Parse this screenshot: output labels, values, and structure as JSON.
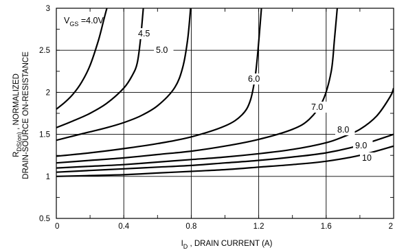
{
  "chart_data": {
    "type": "line",
    "xlabel": {
      "main": "I",
      "sub": "D",
      "rest": " , DRAIN CURRENT (A)"
    },
    "ylabel": {
      "line1_main": "R",
      "line1_sub": "DS(on)",
      "line1_rest": " , NORMALIZED",
      "line2": "DRAIN-SOURCE ON-RESISTANCE"
    },
    "xlim": [
      0,
      2
    ],
    "ylim": [
      0.5,
      3
    ],
    "x_ticks": [
      "0",
      "0.4",
      "0.8",
      "1.2",
      "1.6",
      "2"
    ],
    "x_tick_values": [
      0,
      0.4,
      0.8,
      1.2,
      1.6,
      2
    ],
    "y_ticks": [
      "0.5",
      "1",
      "1.5",
      "2",
      "2.5",
      "3"
    ],
    "y_tick_values": [
      0.5,
      1,
      1.5,
      2,
      2.5,
      3
    ],
    "grid": true,
    "legend_prefix": {
      "main": "V",
      "sub": "GS",
      "rest": " ="
    },
    "series": [
      {
        "name": "4.0V",
        "x": [
          0,
          0.05,
          0.1,
          0.15,
          0.2,
          0.25,
          0.28,
          0.3,
          0.32
        ],
        "y": [
          1.8,
          1.88,
          1.98,
          2.12,
          2.32,
          2.62,
          2.85,
          3.0,
          3.1
        ]
      },
      {
        "name": "4.5",
        "x": [
          0,
          0.1,
          0.2,
          0.3,
          0.4,
          0.45,
          0.48,
          0.5,
          0.52
        ],
        "y": [
          1.58,
          1.66,
          1.75,
          1.87,
          2.05,
          2.2,
          2.35,
          2.65,
          3.1
        ]
      },
      {
        "name": "5.0",
        "x": [
          0,
          0.1,
          0.2,
          0.3,
          0.4,
          0.5,
          0.6,
          0.7,
          0.75,
          0.78,
          0.8
        ],
        "y": [
          1.43,
          1.48,
          1.53,
          1.58,
          1.64,
          1.72,
          1.84,
          2.05,
          2.3,
          2.65,
          3.1
        ]
      },
      {
        "name": "6.0",
        "x": [
          0,
          0.2,
          0.4,
          0.6,
          0.8,
          1.0,
          1.1,
          1.15,
          1.18,
          1.2,
          1.22
        ],
        "y": [
          1.24,
          1.28,
          1.33,
          1.39,
          1.47,
          1.6,
          1.73,
          1.9,
          2.2,
          2.6,
          3.1
        ]
      },
      {
        "name": "7.0",
        "x": [
          0,
          0.2,
          0.4,
          0.6,
          0.8,
          1.0,
          1.2,
          1.4,
          1.5,
          1.58,
          1.63,
          1.65,
          1.67
        ],
        "y": [
          1.16,
          1.19,
          1.22,
          1.26,
          1.3,
          1.36,
          1.44,
          1.56,
          1.68,
          1.9,
          2.25,
          2.65,
          3.1
        ]
      },
      {
        "name": "8.0",
        "x": [
          0,
          0.2,
          0.4,
          0.6,
          0.8,
          1.0,
          1.2,
          1.4,
          1.6,
          1.7,
          1.8,
          1.9,
          1.98,
          2.0
        ],
        "y": [
          1.1,
          1.12,
          1.14,
          1.17,
          1.2,
          1.23,
          1.27,
          1.32,
          1.4,
          1.47,
          1.56,
          1.72,
          1.95,
          2.05
        ]
      },
      {
        "name": "9.0",
        "x": [
          0,
          0.2,
          0.4,
          0.6,
          0.8,
          1.0,
          1.2,
          1.4,
          1.6,
          1.8,
          2.0
        ],
        "y": [
          1.05,
          1.07,
          1.09,
          1.11,
          1.13,
          1.16,
          1.19,
          1.23,
          1.28,
          1.37,
          1.5
        ]
      },
      {
        "name": "10",
        "x": [
          0,
          0.2,
          0.4,
          0.6,
          0.8,
          1.0,
          1.2,
          1.4,
          1.6,
          1.8,
          2.0
        ],
        "y": [
          1.0,
          1.01,
          1.02,
          1.04,
          1.06,
          1.08,
          1.11,
          1.14,
          1.18,
          1.25,
          1.36
        ]
      }
    ]
  }
}
